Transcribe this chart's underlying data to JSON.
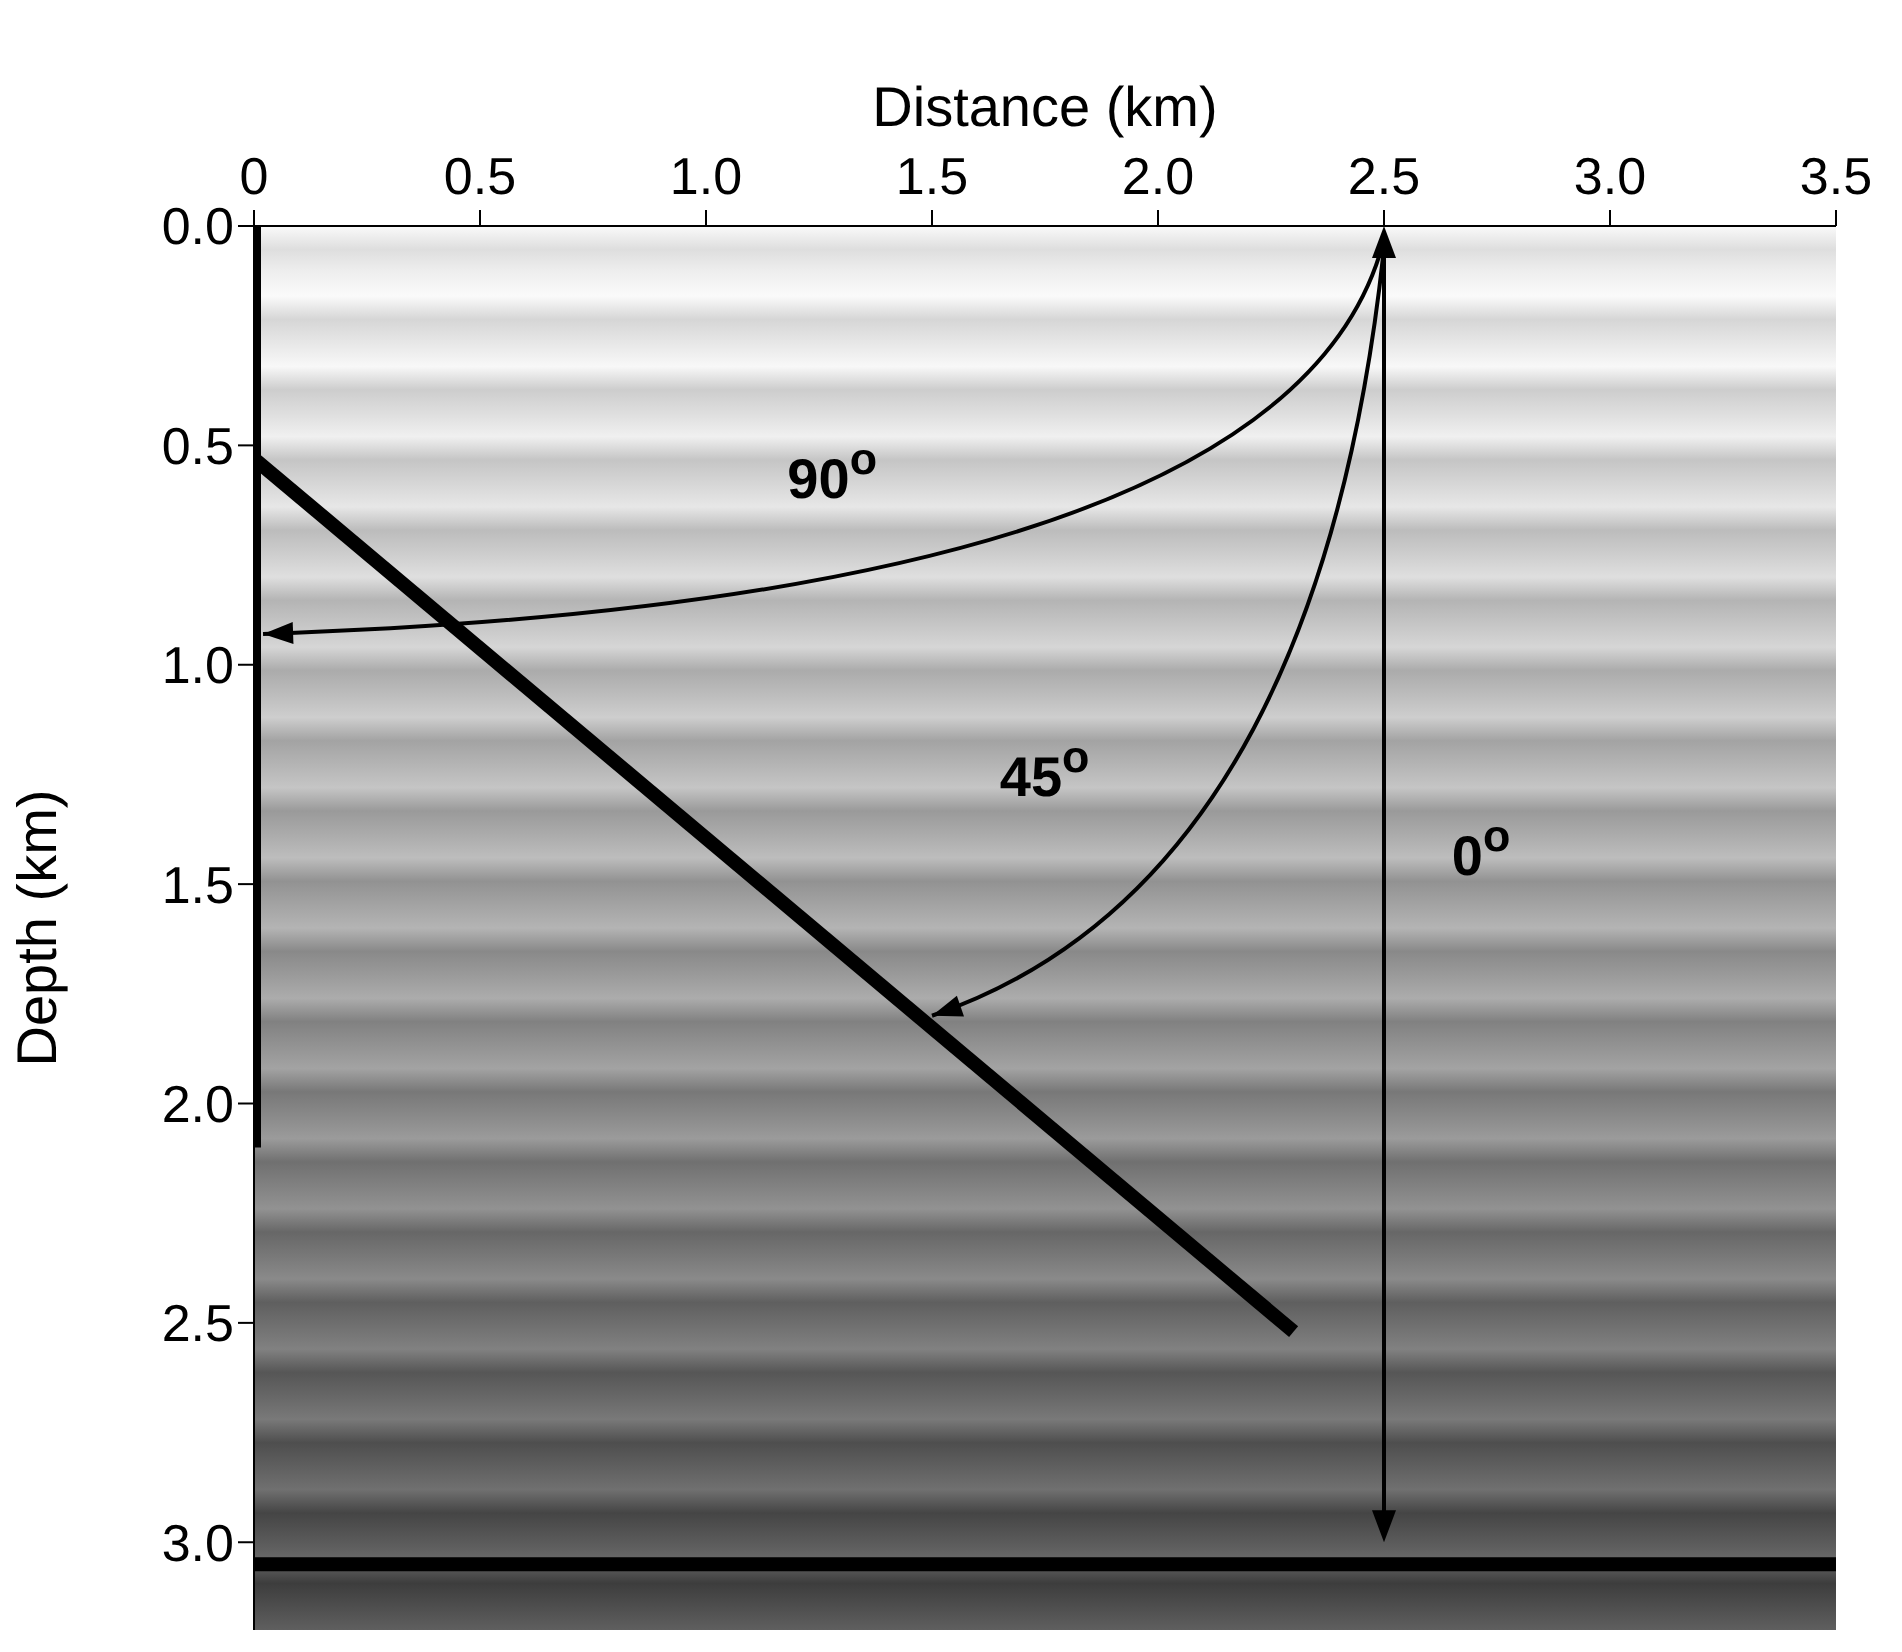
{
  "chart_data": {
    "type": "line",
    "xlabel": "Distance (km)",
    "ylabel": "Depth (km)",
    "xlim": [
      0,
      3.5
    ],
    "xticks": [
      0,
      {
        "value": 0.5,
        "label": "0.5"
      },
      {
        "value": 1,
        "label": "1.0"
      },
      {
        "value": 1.5,
        "label": "1.5"
      },
      {
        "value": 2,
        "label": "2.0"
      },
      {
        "value": 2.5,
        "label": "2.5"
      },
      {
        "value": 3,
        "label": "3.0"
      },
      {
        "value": 3.5,
        "label": "3.5"
      }
    ],
    "ylim": [
      3.2,
      0
    ],
    "yticks": [
      {
        "value": 0,
        "label": "0.0"
      },
      {
        "value": 0.5,
        "label": "0.5"
      },
      {
        "value": 1,
        "label": "1.0"
      },
      {
        "value": 1.5,
        "label": "1.5"
      },
      {
        "value": 2,
        "label": "2.0"
      },
      {
        "value": 2.5,
        "label": "2.5"
      },
      {
        "value": 3,
        "label": "3.0"
      }
    ],
    "grid": false,
    "marker": "none",
    "line_style": "solid",
    "series": [
      {
        "color": "#000000",
        "x": [
          0,
          0
        ],
        "values": [
          0,
          2.1
        ]
      },
      {
        "color": "#000000",
        "x": [
          0,
          2.3
        ],
        "values": [
          0.53,
          2.52
        ]
      },
      {
        "color": "#000000",
        "x": [
          0,
          3.5
        ],
        "values": [
          3.05,
          3.05
        ]
      }
    ],
    "annotations": [
      "90$^{o}$",
      "45$^{o}$",
      "0$^{o}$"
    ]
  }
}
